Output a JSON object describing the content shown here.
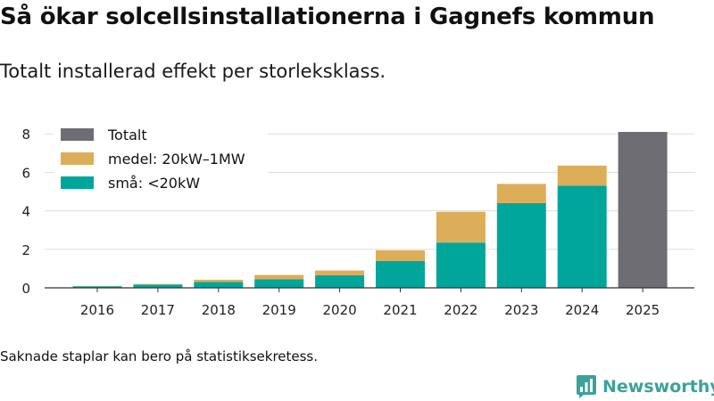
{
  "header": {
    "title": "Så ökar solcellsinstallationerna i Gagnefs kommun",
    "subtitle": "Totalt installerad effekt per storleksklass."
  },
  "footer": {
    "note": "Saknade staplar kan bero på statistiksekretess.",
    "brand": "Newsworthy"
  },
  "colors": {
    "small": "#00a69a",
    "medium": "#dcae5a",
    "total": "#6d6d73",
    "grid": "#dddddd",
    "axis": "#333333",
    "brand": "#3aa39a"
  },
  "chart_data": {
    "type": "bar",
    "stacked": true,
    "title": "Så ökar solcellsinstallationerna i Gagnefs kommun",
    "subtitle": "Totalt installerad effekt per storleksklass.",
    "xlabel": "",
    "ylabel": "",
    "ylim": [
      0,
      8.5
    ],
    "yticks": [
      0,
      2,
      4,
      6,
      8
    ],
    "grid": true,
    "legend_position": "top-left",
    "categories": [
      "2016",
      "2017",
      "2018",
      "2019",
      "2020",
      "2021",
      "2022",
      "2023",
      "2024",
      "2025"
    ],
    "series": [
      {
        "name": "små: <20kW",
        "color": "#00a69a",
        "values": [
          0.08,
          0.17,
          0.3,
          0.45,
          0.65,
          1.4,
          2.35,
          4.4,
          5.3,
          null
        ]
      },
      {
        "name": "medel: 20kW–1MW",
        "color": "#dcae5a",
        "values": [
          0.02,
          0.03,
          0.12,
          0.22,
          0.25,
          0.55,
          1.6,
          1.0,
          1.05,
          null
        ]
      },
      {
        "name": "Totalt",
        "color": "#6d6d73",
        "values": [
          null,
          null,
          null,
          null,
          null,
          null,
          null,
          null,
          null,
          8.1
        ]
      }
    ],
    "legend": [
      "Totalt",
      "medel: 20kW–1MW",
      "små: <20kW"
    ]
  }
}
